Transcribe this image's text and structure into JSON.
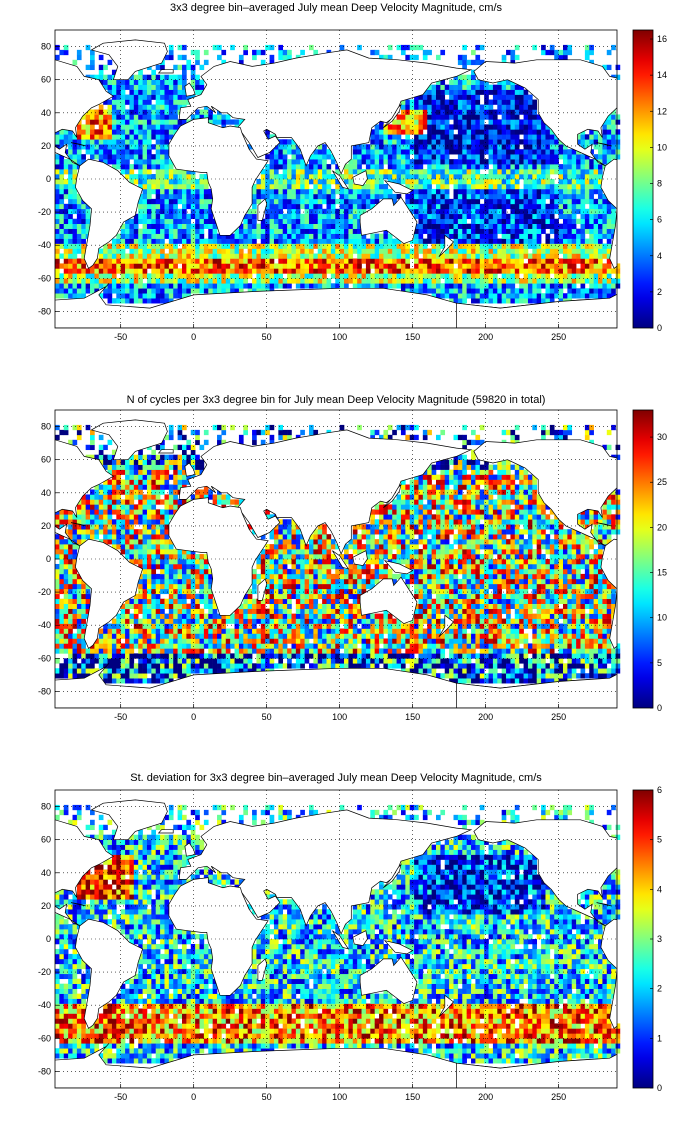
{
  "panels": [
    {
      "title": "3x3 degree bin–averaged July mean Deep Velocity Magnitude, cm/s",
      "colorbar": {
        "min": 0,
        "max": 16.5,
        "ticks": [
          0,
          2,
          4,
          6,
          8,
          10,
          12,
          14,
          16
        ]
      },
      "field": "velocity"
    },
    {
      "title": "N of cycles per 3x3 degree bin for July mean Deep Velocity Magnitude (59820 in total)",
      "colorbar": {
        "min": 0,
        "max": 33,
        "ticks": [
          0,
          5,
          10,
          15,
          20,
          25,
          30
        ]
      },
      "field": "count"
    },
    {
      "title": "St. deviation for 3x3 degree bin–averaged July mean Deep Velocity Magnitude, cm/s",
      "colorbar": {
        "min": 0,
        "max": 6,
        "ticks": [
          0,
          1,
          2,
          3,
          4,
          5,
          6
        ]
      },
      "field": "std"
    }
  ],
  "map_axes": {
    "lon_range": [
      -95,
      290
    ],
    "lat_range": [
      -90,
      90
    ],
    "lon_ticks": [
      -50,
      0,
      50,
      100,
      150,
      200,
      250
    ],
    "lat_ticks": [
      -80,
      -60,
      -40,
      -20,
      0,
      20,
      40,
      60,
      80
    ],
    "grid": "dotted",
    "bin_size_deg": 3
  },
  "colormap": "jet"
}
